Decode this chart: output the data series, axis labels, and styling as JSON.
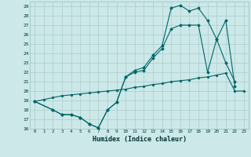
{
  "xlabel": "Humidex (Indice chaleur)",
  "bg_color": "#cce8e8",
  "grid_color": "#aacccc",
  "line_color": "#006666",
  "xlim": [
    -0.5,
    23.5
  ],
  "ylim": [
    16,
    29.5
  ],
  "xticks": [
    0,
    1,
    2,
    3,
    4,
    5,
    6,
    7,
    8,
    9,
    10,
    11,
    12,
    13,
    14,
    15,
    16,
    17,
    18,
    19,
    20,
    21,
    22,
    23
  ],
  "yticks": [
    16,
    17,
    18,
    19,
    20,
    21,
    22,
    23,
    24,
    25,
    26,
    27,
    28,
    29
  ],
  "line1_x": [
    0,
    1,
    2,
    3,
    4,
    5,
    6,
    7,
    8,
    9,
    10,
    11,
    12,
    13,
    14,
    15,
    16,
    17,
    18,
    19,
    20,
    21,
    22,
    23
  ],
  "line1_y": [
    18.9,
    19.1,
    19.3,
    19.5,
    19.6,
    19.7,
    19.8,
    19.9,
    20.0,
    20.1,
    20.2,
    20.4,
    20.5,
    20.7,
    20.8,
    21.0,
    21.1,
    21.2,
    21.4,
    21.5,
    21.7,
    21.9,
    20.0,
    20.0
  ],
  "line2_x": [
    0,
    2,
    3,
    4,
    5,
    6,
    7,
    8,
    9,
    10,
    11,
    12,
    13,
    14,
    15,
    16,
    17,
    18,
    19,
    20,
    21,
    22
  ],
  "line2_y": [
    18.9,
    18.0,
    17.5,
    17.5,
    17.2,
    16.5,
    16.1,
    18.0,
    18.8,
    21.5,
    22.0,
    22.2,
    23.5,
    24.5,
    26.6,
    27.0,
    27.0,
    27.0,
    22.0,
    25.5,
    23.0,
    21.0
  ],
  "line3_x": [
    0,
    2,
    3,
    4,
    5,
    6,
    7,
    8,
    9,
    10,
    11,
    12,
    13,
    14,
    15,
    16,
    17,
    18,
    19,
    20,
    21,
    22
  ],
  "line3_y": [
    18.9,
    18.0,
    17.5,
    17.5,
    17.2,
    16.5,
    16.1,
    18.0,
    18.8,
    21.5,
    22.2,
    22.5,
    23.8,
    24.8,
    28.8,
    29.1,
    28.5,
    28.8,
    27.5,
    25.5,
    27.5,
    20.5
  ]
}
